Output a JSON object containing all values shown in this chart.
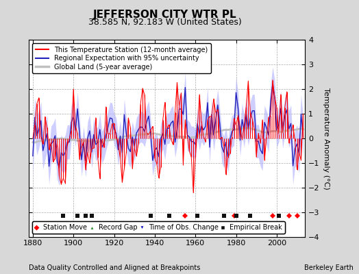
{
  "title": "JEFFERSON CITY WTR PL",
  "subtitle": "38.585 N, 92.183 W (United States)",
  "ylabel": "Temperature Anomaly (°C)",
  "xlabel_note": "Data Quality Controlled and Aligned at Breakpoints",
  "credit": "Berkeley Earth",
  "xlim": [
    1878,
    2014
  ],
  "ylim": [
    -4,
    4
  ],
  "yticks": [
    -4,
    -3,
    -2,
    -1,
    0,
    1,
    2,
    3,
    4
  ],
  "xticks": [
    1880,
    1900,
    1920,
    1940,
    1960,
    1980,
    2000
  ],
  "fig_bg_color": "#d8d8d8",
  "plot_bg_color": "#ffffff",
  "station_color": "#ff0000",
  "regional_color": "#2222bb",
  "uncertainty_color": "#b0b0ff",
  "global_color": "#c0c0c0",
  "legend_items": [
    {
      "label": "This Temperature Station (12-month average)",
      "color": "#ff0000",
      "lw": 1.5
    },
    {
      "label": "Regional Expectation with 95% uncertainty",
      "color": "#2222bb",
      "lw": 1.5
    },
    {
      "label": "Global Land (5-year average)",
      "color": "#c0c0c0",
      "lw": 2.5
    }
  ],
  "marker_items": [
    {
      "label": "Station Move",
      "color": "#ff0000",
      "marker": "D"
    },
    {
      "label": "Record Gap",
      "color": "#228B22",
      "marker": "^"
    },
    {
      "label": "Time of Obs. Change",
      "color": "#0000cc",
      "marker": "v"
    },
    {
      "label": "Empirical Break",
      "color": "#111111",
      "marker": "s"
    }
  ],
  "station_moves": [
    1955,
    1979,
    1998,
    2006,
    2010
  ],
  "empirical_breaks": [
    1895,
    1902,
    1906,
    1909,
    1938,
    1947,
    1961,
    1974,
    1980,
    1987,
    2001
  ],
  "seed": 42
}
